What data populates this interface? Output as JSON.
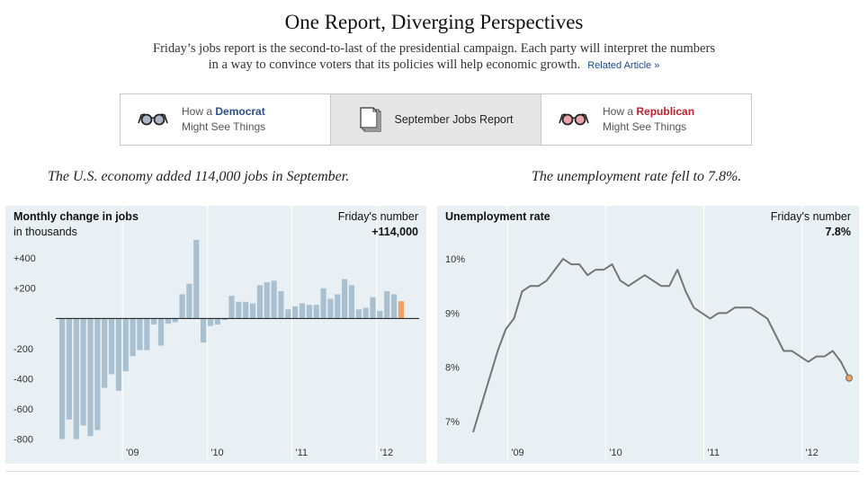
{
  "header": {
    "title": "One Report, Diverging Perspectives",
    "subtitle_line1": "Friday’s jobs report is the second-to-last of the presidential campaign. Each party will interpret the numbers",
    "subtitle_line2": "in a way to convince voters that its policies will help economic growth.",
    "related_link": "Related Article »"
  },
  "tabs": {
    "democrat": {
      "prefix": "How a ",
      "party": "Democrat",
      "line2": "Might See Things",
      "icon": "glasses-icon"
    },
    "middle": {
      "label": "September Jobs Report",
      "icon": "document-stack-icon",
      "selected": true
    },
    "republican": {
      "prefix": "How a ",
      "party": "Republican",
      "line2": "Might See Things",
      "icon": "glasses-icon"
    }
  },
  "headlines": {
    "left": "The U.S. economy added 114,000 jobs in September.",
    "right": "The unemployment rate fell to 7.8%."
  },
  "colors": {
    "bar": "#a9c0d1",
    "highlight": "#f3a261",
    "line": "#757575",
    "panel_bg": "#e9f0f3",
    "democrat": "#2b4e8c",
    "republican": "#c3202b"
  },
  "chart_data": [
    {
      "type": "bar",
      "title": "Monthly change in jobs",
      "subtitle": "in thousands",
      "callout_label": "Friday's number",
      "callout_value": "+114,000",
      "ylim": [
        -820,
        520
      ],
      "yticks": [
        400,
        200,
        -200,
        -400,
        -600,
        -800
      ],
      "ytick_labels": [
        "+400",
        "+200",
        "-200",
        "-400",
        "-600",
        "-800"
      ],
      "xtick_labels": [
        "'09",
        "'10",
        "'11",
        "'12"
      ],
      "xtick_index": [
        9,
        21,
        33,
        45
      ],
      "grid": true,
      "values": [
        -800,
        -670,
        -800,
        -710,
        -780,
        -740,
        -460,
        -370,
        -480,
        -350,
        -250,
        -210,
        -210,
        -40,
        -180,
        -35,
        -25,
        160,
        230,
        520,
        -160,
        -50,
        -40,
        -10,
        150,
        110,
        110,
        100,
        220,
        240,
        250,
        180,
        60,
        80,
        100,
        90,
        90,
        200,
        130,
        160,
        260,
        220,
        60,
        70,
        140,
        50,
        180,
        160,
        114
      ],
      "highlight_last": true
    },
    {
      "type": "line",
      "title": "Unemployment rate",
      "callout_label": "Friday's number",
      "callout_value": "7.8%",
      "ylim": [
        6.5,
        10.35
      ],
      "yticks": [
        10,
        9,
        8,
        7
      ],
      "ytick_labels": [
        "10%",
        "9%",
        "8%",
        "7%"
      ],
      "xtick_labels": [
        "'09",
        "'10",
        "'11",
        "'12"
      ],
      "xtick_index": [
        4,
        16,
        28,
        40
      ],
      "grid": true,
      "values": [
        6.8,
        7.3,
        7.8,
        8.3,
        8.7,
        8.9,
        9.4,
        9.5,
        9.5,
        9.6,
        9.8,
        10.0,
        9.9,
        9.9,
        9.7,
        9.8,
        9.8,
        9.9,
        9.6,
        9.5,
        9.6,
        9.7,
        9.6,
        9.5,
        9.5,
        9.8,
        9.4,
        9.1,
        9.0,
        8.9,
        9.0,
        9.0,
        9.1,
        9.1,
        9.1,
        9.0,
        8.9,
        8.6,
        8.3,
        8.3,
        8.2,
        8.1,
        8.2,
        8.2,
        8.3,
        8.1,
        7.8
      ],
      "highlight_last": true
    }
  ]
}
